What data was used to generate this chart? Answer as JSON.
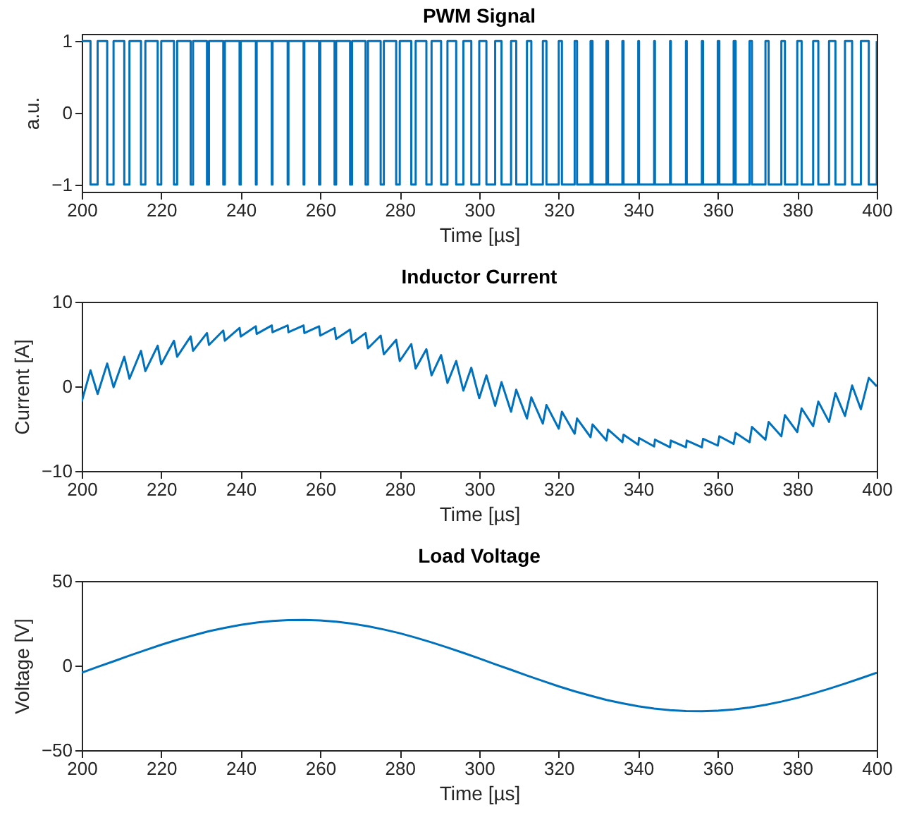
{
  "chart_data": [
    {
      "type": "step",
      "title": "PWM Signal",
      "xlabel": "Time [µs]",
      "ylabel": "a.u.",
      "xlim": [
        200,
        400
      ],
      "xticks": [
        200,
        220,
        240,
        260,
        280,
        300,
        320,
        340,
        360,
        380,
        400
      ],
      "ylim": [
        -1.1,
        1.1
      ],
      "yticks": [
        -1,
        0,
        1
      ],
      "grid": false,
      "marker": "none",
      "line_style": "solid",
      "x": [
        200,
        202.2,
        204,
        206.4,
        208,
        210.7,
        212,
        214.9,
        216,
        219.1,
        220,
        223.2,
        224,
        227.4,
        228,
        231.5,
        232,
        235.6,
        236,
        239.7,
        240,
        243.8,
        244,
        247.8,
        248,
        251.8,
        252,
        255.8,
        256,
        259.7,
        260,
        263.6,
        264,
        267.5,
        268,
        271.4,
        272,
        275.2,
        276,
        279.1,
        280,
        282.9,
        284,
        286.7,
        288,
        290.4,
        292,
        294.2,
        296,
        298,
        300,
        301.8,
        304,
        305.6,
        308,
        309.3,
        312,
        313.1,
        316,
        316.9,
        320,
        320.8,
        324,
        324.6,
        328,
        328.5,
        332,
        332.4,
        336,
        336.3,
        340,
        340.2,
        344,
        344.2,
        348,
        348.2,
        352,
        352.2,
        356,
        356.3,
        360,
        360.4,
        364,
        364.5,
        368,
        368.6,
        372,
        372.8,
        376,
        376.9,
        380,
        381.1,
        384,
        385.3,
        388,
        389.6,
        392,
        393.8,
        396,
        398,
        400
      ],
      "series": [
        {
          "color": "#0072bd",
          "values": [
            1,
            -1,
            1,
            -1,
            1,
            -1,
            1,
            -1,
            1,
            -1,
            1,
            -1,
            1,
            -1,
            1,
            -1,
            1,
            -1,
            1,
            -1,
            1,
            -1,
            1,
            -1,
            1,
            -1,
            1,
            -1,
            1,
            -1,
            1,
            -1,
            1,
            -1,
            1,
            -1,
            1,
            -1,
            1,
            -1,
            1,
            -1,
            1,
            -1,
            1,
            -1,
            1,
            -1,
            1,
            -1,
            1,
            -1,
            1,
            -1,
            1,
            -1,
            1,
            -1,
            1,
            -1,
            1,
            -1,
            1,
            -1,
            1,
            -1,
            1,
            -1,
            1,
            -1,
            1,
            -1,
            1,
            -1,
            1,
            -1,
            1,
            -1,
            1,
            -1,
            1,
            -1,
            1,
            -1,
            1,
            -1,
            1,
            -1,
            1,
            -1,
            1,
            -1,
            1,
            -1,
            1,
            -1,
            1,
            -1,
            1,
            -1,
            1
          ]
        }
      ]
    },
    {
      "type": "line",
      "title": "Inductor Current",
      "xlabel": "Time [µs]",
      "ylabel": "Current [A]",
      "xlim": [
        200,
        400
      ],
      "xticks": [
        200,
        220,
        240,
        260,
        280,
        300,
        320,
        340,
        360,
        380,
        400
      ],
      "ylim": [
        -10,
        10
      ],
      "yticks": [
        -10,
        0,
        10
      ],
      "grid": false,
      "marker": "none",
      "line_style": "solid",
      "x": [
        200,
        202.2,
        204,
        206.4,
        208,
        210.7,
        212,
        214.9,
        216,
        219.1,
        220,
        223.2,
        224,
        227.4,
        228,
        231.5,
        232,
        235.6,
        236,
        239.7,
        240,
        243.8,
        244,
        247.8,
        248,
        251.8,
        252,
        255.8,
        256,
        259.7,
        260,
        263.6,
        264,
        267.5,
        268,
        271.4,
        272,
        275.2,
        276,
        279.1,
        280,
        282.9,
        284,
        286.7,
        288,
        290.4,
        292,
        294.2,
        296,
        298,
        300,
        301.8,
        304,
        305.6,
        308,
        309.3,
        312,
        313.1,
        316,
        316.9,
        320,
        320.8,
        324,
        324.6,
        328,
        328.5,
        332,
        332.4,
        336,
        336.3,
        340,
        340.2,
        344,
        344.2,
        348,
        348.2,
        352,
        352.2,
        356,
        356.3,
        360,
        360.4,
        364,
        364.5,
        368,
        368.6,
        372,
        372.8,
        376,
        376.9,
        380,
        381.1,
        384,
        385.3,
        388,
        389.6,
        392,
        393.8,
        396,
        398,
        400
      ],
      "series": [
        {
          "color": "#0072bd",
          "values": [
            -1.8,
            1.9,
            -0.9,
            2.7,
            -0.1,
            3.5,
            0.9,
            4.2,
            1.8,
            4.8,
            2.6,
            5.4,
            3.5,
            5.9,
            4.2,
            6.3,
            4.9,
            6.6,
            5.4,
            6.9,
            5.9,
            7.1,
            6.2,
            7.2,
            6.4,
            7.2,
            6.4,
            7.2,
            6.3,
            7.1,
            6.0,
            6.9,
            5.6,
            6.7,
            5.1,
            6.3,
            4.5,
            6.0,
            3.8,
            5.5,
            3.0,
            5.0,
            2.1,
            4.4,
            1.3,
            3.7,
            0.4,
            3.0,
            -0.5,
            2.2,
            -1.4,
            1.3,
            -2.3,
            0.5,
            -3.0,
            -0.4,
            -3.8,
            -1.3,
            -4.4,
            -2.2,
            -5.0,
            -3.0,
            -5.6,
            -3.8,
            -6.0,
            -4.5,
            -6.4,
            -5.1,
            -6.6,
            -5.7,
            -6.9,
            -6.1,
            -7.1,
            -6.3,
            -7.2,
            -6.4,
            -7.2,
            -6.4,
            -7.2,
            -6.2,
            -7.0,
            -5.9,
            -6.8,
            -5.5,
            -6.6,
            -4.8,
            -6.3,
            -4.2,
            -5.9,
            -3.4,
            -5.4,
            -2.6,
            -4.7,
            -1.8,
            -4.2,
            -0.8,
            -3.5,
            0.1,
            -2.7,
            1.0,
            0
          ]
        }
      ]
    },
    {
      "type": "line",
      "title": "Load Voltage",
      "xlabel": "Time [µs]",
      "ylabel": "Voltage [V]",
      "xlim": [
        200,
        400
      ],
      "xticks": [
        200,
        220,
        240,
        260,
        280,
        300,
        320,
        340,
        360,
        380,
        400
      ],
      "ylim": [
        -50,
        50
      ],
      "yticks": [
        -50,
        0,
        50
      ],
      "grid": false,
      "marker": "none",
      "line_style": "solid",
      "x": [
        200,
        204,
        208,
        212,
        216,
        220,
        224,
        228,
        232,
        236,
        240,
        244,
        248,
        252,
        256,
        260,
        264,
        268,
        272,
        276,
        280,
        284,
        288,
        292,
        296,
        300,
        304,
        308,
        312,
        316,
        320,
        324,
        328,
        332,
        336,
        340,
        344,
        348,
        352,
        356,
        360,
        364,
        368,
        372,
        376,
        380,
        384,
        388,
        392,
        396,
        400
      ],
      "series": [
        {
          "color": "#0072bd",
          "values": [
            -4.2,
            -0.8,
            2.5,
            5.9,
            9.1,
            12.3,
            15.2,
            17.8,
            20.3,
            22.3,
            24.1,
            25.4,
            26.4,
            26.9,
            27.0,
            26.7,
            25.9,
            24.8,
            23.2,
            21.3,
            19.1,
            16.5,
            13.7,
            10.7,
            7.5,
            4.2,
            0.8,
            -2.5,
            -5.9,
            -9.1,
            -12.3,
            -15.2,
            -17.8,
            -20.3,
            -22.3,
            -24.1,
            -25.4,
            -26.4,
            -26.9,
            -27.0,
            -26.7,
            -25.9,
            -24.8,
            -23.2,
            -21.3,
            -19.1,
            -16.5,
            -13.7,
            -10.7,
            -7.5,
            -4.2
          ]
        }
      ]
    }
  ]
}
